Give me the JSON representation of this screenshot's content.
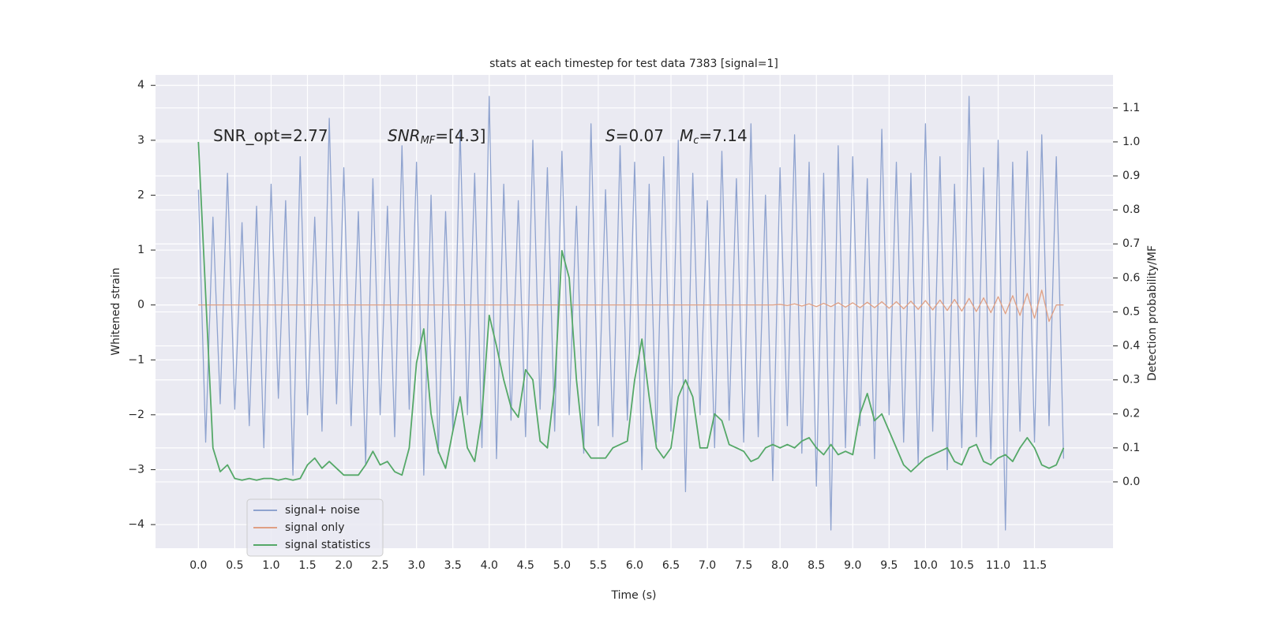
{
  "chart_data": {
    "type": "line",
    "title": "stats at each timestep for test data 7383 [signal=1]",
    "xlabel": "Time (s)",
    "ylabel": "Whitened strain",
    "y2label": "Detection probability/MF",
    "annotations": [
      [
        "SNR_opt=2.77"
      ],
      [
        "SNR",
        "MF",
        "=[4.3]"
      ],
      [
        "S",
        "=0.07",
        "M",
        "c",
        "=7.14"
      ]
    ],
    "grid": true,
    "legend": "lower left",
    "xlim": [
      -0.59,
      12.58
    ],
    "ylim": [
      -4.43,
      4.19
    ],
    "y2lim": [
      -0.195,
      1.197
    ],
    "xticks": [
      {
        "value": 0,
        "label": "0.0"
      },
      {
        "value": 0.5,
        "label": "0.5"
      },
      {
        "value": 1,
        "label": "1.0"
      },
      {
        "value": 1.5,
        "label": "1.5"
      },
      {
        "value": 2,
        "label": "2.0"
      },
      {
        "value": 2.5,
        "label": "2.5"
      },
      {
        "value": 3,
        "label": "3.0"
      },
      {
        "value": 3.5,
        "label": "3.5"
      },
      {
        "value": 4,
        "label": "4.0"
      },
      {
        "value": 4.5,
        "label": "4.5"
      },
      {
        "value": 5,
        "label": "5.0"
      },
      {
        "value": 5.5,
        "label": "5.5"
      },
      {
        "value": 6,
        "label": "6.0"
      },
      {
        "value": 6.5,
        "label": "6.5"
      },
      {
        "value": 7,
        "label": "7.0"
      },
      {
        "value": 7.5,
        "label": "7.5"
      },
      {
        "value": 8,
        "label": "8.0"
      },
      {
        "value": 8.5,
        "label": "8.5"
      },
      {
        "value": 9,
        "label": "9.0"
      },
      {
        "value": 9.5,
        "label": "9.5"
      },
      {
        "value": 10,
        "label": "10.0"
      },
      {
        "value": 10.5,
        "label": "10.5"
      },
      {
        "value": 11,
        "label": "11.0"
      },
      {
        "value": 11.5,
        "label": "11.5"
      }
    ],
    "yticks": [
      {
        "value": -4,
        "label": "−4"
      },
      {
        "value": -3,
        "label": "−3"
      },
      {
        "value": -2,
        "label": "−2"
      },
      {
        "value": -1,
        "label": "−1"
      },
      0,
      1,
      2,
      3,
      4
    ],
    "y2ticks": [
      {
        "value": 0,
        "label": "0.0"
      },
      {
        "value": 0.1,
        "label": "0.1"
      },
      {
        "value": 0.2,
        "label": "0.2"
      },
      {
        "value": 0.3,
        "label": "0.3"
      },
      {
        "value": 0.4,
        "label": "0.4"
      },
      {
        "value": 0.5,
        "label": "0.5"
      },
      {
        "value": 0.6,
        "label": "0.6"
      },
      {
        "value": 0.7,
        "label": "0.7"
      },
      {
        "value": 0.8,
        "label": "0.8"
      },
      {
        "value": 0.9,
        "label": "0.9"
      },
      {
        "value": 1,
        "label": "1.0"
      },
      {
        "value": 1.1,
        "label": "1.1"
      }
    ],
    "x": [
      0,
      0.1,
      0.2,
      0.3,
      0.4,
      0.5,
      0.6,
      0.7,
      0.8,
      0.9,
      1,
      1.1,
      1.2,
      1.3,
      1.4,
      1.5,
      1.6,
      1.7,
      1.8,
      1.9,
      2,
      2.1,
      2.2,
      2.3,
      2.4,
      2.5,
      2.6,
      2.7,
      2.8,
      2.9,
      3,
      3.1,
      3.2,
      3.3,
      3.4,
      3.5,
      3.6,
      3.7,
      3.8,
      3.9,
      4,
      4.1,
      4.2,
      4.3,
      4.4,
      4.5,
      4.6,
      4.7,
      4.8,
      4.9,
      5,
      5.1,
      5.2,
      5.3,
      5.4,
      5.5,
      5.6,
      5.7,
      5.8,
      5.9,
      6,
      6.1,
      6.2,
      6.3,
      6.4,
      6.5,
      6.6,
      6.7,
      6.8,
      6.9,
      7,
      7.1,
      7.2,
      7.3,
      7.4,
      7.5,
      7.6,
      7.7,
      7.8,
      7.9,
      8,
      8.1,
      8.2,
      8.3,
      8.4,
      8.5,
      8.6,
      8.7,
      8.8,
      8.9,
      9,
      9.1,
      9.2,
      9.3,
      9.4,
      9.5,
      9.6,
      9.7,
      9.8,
      9.9,
      10,
      10.1,
      10.2,
      10.3,
      10.4,
      10.5,
      10.6,
      10.7,
      10.8,
      10.9,
      11,
      11.1,
      11.2,
      11.3,
      11.4,
      11.5,
      11.6,
      11.7,
      11.8,
      11.9
    ],
    "series": [
      {
        "name": "signal+ noise",
        "color": "#8fa3cf",
        "axis": "y",
        "values": [
          2.1,
          -2.5,
          1.6,
          -1.8,
          2.4,
          -1.9,
          1.5,
          -2.2,
          1.8,
          -2.6,
          2.2,
          -1.7,
          1.9,
          -3.1,
          2.7,
          -2.0,
          1.6,
          -2.3,
          3.4,
          -1.8,
          2.5,
          -2.2,
          1.7,
          -2.9,
          2.3,
          -2.0,
          1.8,
          -2.4,
          2.9,
          -1.9,
          2.6,
          -3.1,
          2.0,
          -2.7,
          1.7,
          -2.3,
          3.2,
          -2.0,
          2.4,
          -2.6,
          3.8,
          -2.8,
          2.2,
          -2.1,
          1.9,
          -2.4,
          3.0,
          -1.9,
          2.5,
          -2.3,
          2.8,
          -2.0,
          1.8,
          -2.7,
          3.3,
          -2.2,
          2.1,
          -2.4,
          2.9,
          -2.1,
          2.6,
          -3.0,
          2.2,
          -2.5,
          2.7,
          -2.3,
          3.0,
          -3.4,
          2.4,
          -2.0,
          1.9,
          -2.6,
          2.8,
          -2.1,
          2.3,
          -2.5,
          3.3,
          -2.4,
          2.0,
          -3.2,
          2.5,
          -2.2,
          3.1,
          -2.7,
          2.6,
          -3.3,
          2.4,
          -4.1,
          2.9,
          -2.6,
          2.7,
          -2.2,
          2.3,
          -2.8,
          3.2,
          -2.0,
          2.6,
          -2.5,
          2.4,
          -2.9,
          3.3,
          -2.3,
          2.7,
          -3.0,
          2.2,
          -2.6,
          3.8,
          -2.4,
          2.5,
          -2.8,
          3.0,
          -4.1,
          2.6,
          -2.3,
          2.8,
          -2.5,
          3.1,
          -2.2,
          2.7,
          -2.8
        ]
      },
      {
        "name": "signal only",
        "color": "#e0a084",
        "axis": "y",
        "values": [
          0,
          0,
          0,
          0,
          0,
          0,
          0,
          0,
          0,
          0,
          0,
          0,
          0,
          0,
          0,
          0,
          0,
          0,
          0,
          0,
          0,
          0,
          0,
          0,
          0,
          0,
          0,
          0,
          0,
          0,
          0,
          0,
          0,
          0,
          0,
          0,
          0,
          0,
          0,
          0,
          0,
          0,
          0,
          0,
          0,
          0,
          0,
          0,
          0,
          0,
          0,
          0,
          0,
          0,
          0,
          0,
          0,
          0,
          0,
          0,
          0,
          0,
          0,
          0,
          0,
          0,
          0,
          0,
          0,
          0,
          0,
          0,
          0,
          0,
          0,
          0,
          0,
          0,
          0,
          0,
          0.01,
          -0.01,
          0.02,
          -0.02,
          0.02,
          -0.03,
          0.03,
          -0.03,
          0.04,
          -0.04,
          0.04,
          -0.05,
          0.05,
          -0.05,
          0.06,
          -0.06,
          0.06,
          -0.07,
          0.07,
          -0.08,
          0.08,
          -0.09,
          0.09,
          -0.1,
          0.1,
          -0.11,
          0.12,
          -0.12,
          0.13,
          -0.14,
          0.15,
          -0.16,
          0.17,
          -0.19,
          0.21,
          -0.24,
          0.27,
          -0.3,
          0,
          0
        ]
      },
      {
        "name": "signal statistics",
        "color": "#55a868",
        "axis": "y2",
        "values": [
          1.0,
          0.55,
          0.1,
          0.03,
          0.05,
          0.01,
          0.005,
          0.01,
          0.005,
          0.01,
          0.01,
          0.005,
          0.01,
          0.005,
          0.01,
          0.05,
          0.07,
          0.04,
          0.06,
          0.04,
          0.02,
          0.02,
          0.02,
          0.05,
          0.09,
          0.05,
          0.06,
          0.03,
          0.02,
          0.1,
          0.35,
          0.45,
          0.2,
          0.09,
          0.04,
          0.15,
          0.25,
          0.1,
          0.06,
          0.2,
          0.49,
          0.4,
          0.3,
          0.22,
          0.19,
          0.33,
          0.3,
          0.12,
          0.1,
          0.28,
          0.68,
          0.6,
          0.3,
          0.1,
          0.07,
          0.07,
          0.07,
          0.1,
          0.11,
          0.12,
          0.3,
          0.42,
          0.25,
          0.1,
          0.07,
          0.1,
          0.25,
          0.3,
          0.25,
          0.1,
          0.1,
          0.2,
          0.18,
          0.11,
          0.1,
          0.09,
          0.06,
          0.07,
          0.1,
          0.11,
          0.1,
          0.11,
          0.1,
          0.12,
          0.13,
          0.1,
          0.08,
          0.11,
          0.08,
          0.09,
          0.08,
          0.2,
          0.26,
          0.18,
          0.2,
          0.15,
          0.1,
          0.05,
          0.03,
          0.05,
          0.07,
          0.08,
          0.09,
          0.1,
          0.06,
          0.05,
          0.1,
          0.11,
          0.06,
          0.05,
          0.07,
          0.08,
          0.06,
          0.1,
          0.13,
          0.1,
          0.05,
          0.04,
          0.05,
          0.1
        ]
      }
    ]
  }
}
